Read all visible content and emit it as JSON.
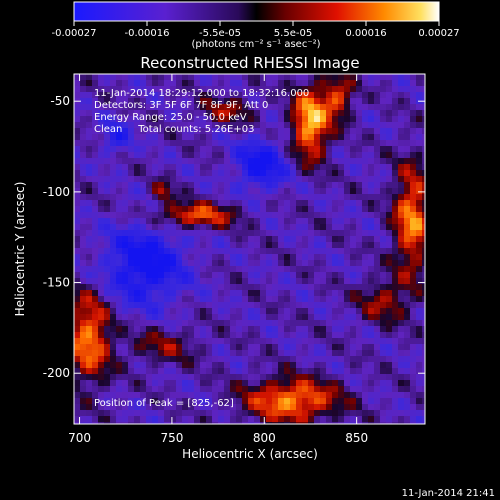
{
  "chart_data": {
    "type": "heatmap",
    "title": "Reconstructed RHESSI Image",
    "xlabel": "Heliocentric X (arcsec)",
    "ylabel": "Heliocentric Y (arcsec)",
    "xlim": [
      697,
      887
    ],
    "ylim": [
      -228,
      -35
    ],
    "x_ticks": [
      700,
      750,
      800,
      850
    ],
    "y_ticks": [
      -50,
      -100,
      -150,
      -200
    ],
    "colorbar": {
      "ticks": [
        "-0.00027",
        "-0.00016",
        "-5.5e-05",
        "5.5e-05",
        "0.00016",
        "0.00027"
      ],
      "unit_label": "(photons cm⁻² s⁻¹ asec⁻²)",
      "range": [
        -0.00027,
        0.00027
      ]
    },
    "annotations": [
      "11-Jan-2014 18:29:12.000 to 18:32:16.000",
      "Detectors: 3F 5F 6F 7F 8F 9F, Att 0",
      "Energy Range: 25.0 - 50.0 keV",
      "Clean     Total counts: 5.26E+03"
    ],
    "peak_label": "Position of Peak = [825,-62]",
    "peak": [
      825,
      -62
    ]
  },
  "footer": {
    "timestamp": "11-Jan-2014 21:41"
  },
  "colors": {
    "background": "#000000",
    "text": "#ffffff"
  }
}
